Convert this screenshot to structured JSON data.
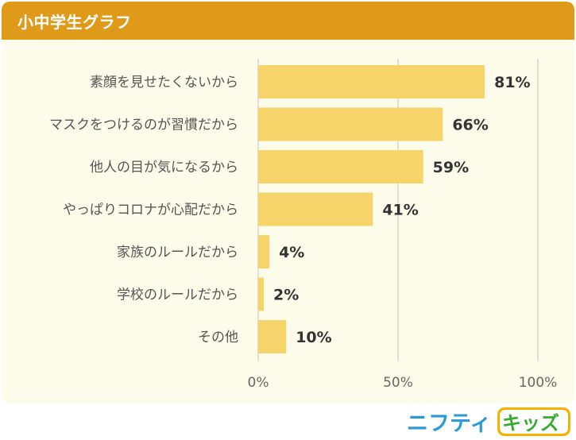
{
  "header": {
    "title": "小中学生グラフ"
  },
  "chart_data": {
    "type": "bar",
    "orientation": "horizontal",
    "categories": [
      "素顔を見せたくないから",
      "マスクをつけるのが習慣だから",
      "他人の目が気になるから",
      "やっぱりコロナが心配だから",
      "家族のルールだから",
      "学校のルールだから",
      "その他"
    ],
    "values": [
      81,
      66,
      59,
      41,
      4,
      2,
      10
    ],
    "value_labels": [
      "81%",
      "66%",
      "59%",
      "41%",
      "4%",
      "2%",
      "10%"
    ],
    "xlim": [
      0,
      100
    ],
    "xticks": [
      "0%",
      "50%",
      "100%"
    ],
    "grid": true,
    "bar_color": "#f7d46a"
  },
  "logo": {
    "text_left": "ニフティ",
    "text_right": "キッズ"
  }
}
